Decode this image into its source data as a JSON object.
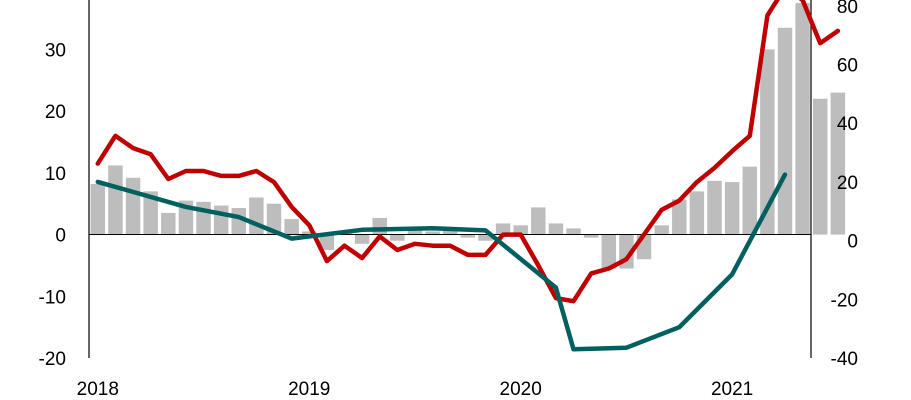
{
  "chart_data": {
    "type": "bar+line",
    "title": "",
    "xlabel": "",
    "ylabel_left": "",
    "ylabel_right": "",
    "x_tick_labels": [
      "2018",
      "2019",
      "2020",
      "2021"
    ],
    "y_left": {
      "lim": [
        -20,
        38
      ],
      "ticks": [
        "30",
        "20",
        "10",
        "0",
        "-10",
        "-20"
      ],
      "tick_values": [
        30,
        20,
        10,
        0,
        -10,
        -20
      ]
    },
    "y_right": {
      "lim": [
        -40,
        82
      ],
      "ticks": [
        "80",
        "60",
        "40",
        "20",
        "0",
        "-20",
        "-40"
      ],
      "tick_values": [
        80,
        60,
        40,
        20,
        0,
        -20,
        -40
      ]
    },
    "grid": false,
    "legend": "none",
    "colors": {
      "bars": "#bdbdbd",
      "red_line": "#c00000",
      "teal_line": "#006060",
      "axis": "#000000"
    },
    "series": [
      {
        "kind": "bar",
        "axis": "left",
        "start": "2018-01",
        "values": [
          8.2,
          11.2,
          9.2,
          7,
          3.5,
          5.5,
          5.3,
          4.7,
          4.3,
          6,
          5,
          2.5,
          0.5,
          -2.5,
          0.5,
          -1.5,
          2.7,
          -1,
          1,
          0.5,
          0.8,
          -0.5,
          -1,
          1.8,
          1.5,
          4.4,
          1.8,
          1,
          -0.5,
          -5.5,
          -5.5,
          -4,
          1.5,
          5.7,
          7,
          8.7,
          8.5,
          11,
          30,
          33.5,
          37.5,
          22,
          23
        ]
      },
      {
        "kind": "line",
        "axis": "left",
        "start": "2018-01",
        "values": [
          11.5,
          16,
          14,
          13,
          9,
          10.3,
          10.3,
          9.5,
          9.5,
          10.3,
          8.5,
          4.5,
          1.5,
          -4.3,
          -1.8,
          -3.8,
          -0.3,
          -2.5,
          -1.5,
          -1.8,
          -1.8,
          -3.3,
          -3.3,
          0,
          0,
          -5,
          -10.3,
          -10.8,
          -6.3,
          -5.5,
          -4,
          0,
          4,
          5.5,
          8.5,
          10.8,
          13.5,
          16,
          35.5,
          40,
          38,
          31,
          33
        ]
      },
      {
        "kind": "line",
        "axis": "right",
        "x": [
          "2018-01",
          "2018-06",
          "2018-09",
          "2018-12",
          "2019-04",
          "2019-08",
          "2019-11",
          "2020-03",
          "2020-04",
          "2020-07",
          "2020-10",
          "2021-01",
          "2021-04"
        ],
        "values": [
          20,
          11.5,
          8,
          0.7,
          3.7,
          4.2,
          3.5,
          -16,
          -37,
          -36.5,
          -29.5,
          -11.5,
          22.5
        ]
      }
    ]
  }
}
